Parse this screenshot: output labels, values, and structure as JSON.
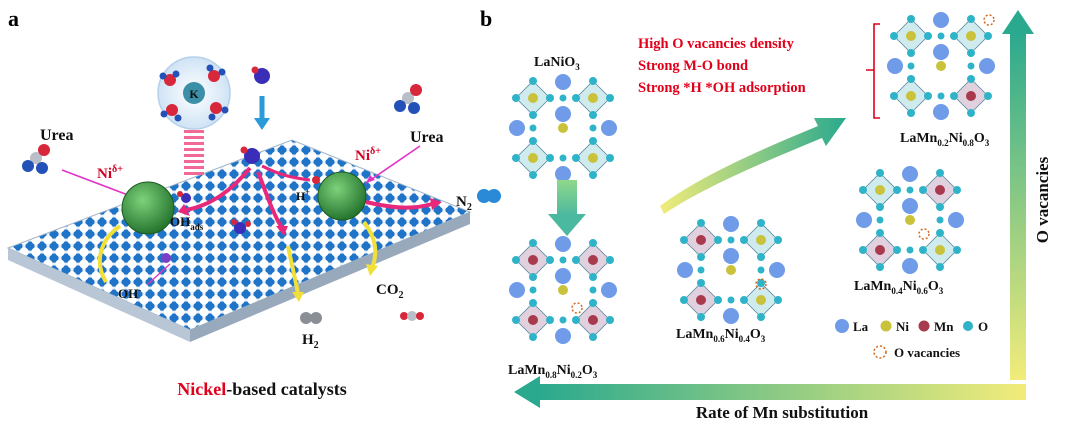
{
  "panel_a": {
    "letter": "a",
    "k_label": "K",
    "urea_left": "Urea",
    "urea_right": "Urea",
    "ni_left": "Ni",
    "ni_right": "Ni",
    "ni_sup": "δ+",
    "h_plus": "H",
    "h_plus_sup": "+",
    "oh_ads": "OH",
    "oh_ads_sub": "ads",
    "oh_minus": "OH",
    "oh_minus_sup": "-",
    "n2": "N",
    "n2_sub": "2",
    "co2": "CO",
    "co2_sub": "2",
    "h2": "H",
    "h2_sub": "2",
    "caption_red": "Nickel",
    "caption_rest": "-based catalysts",
    "colors": {
      "surface_blue": "#1f74c8",
      "catalyst_green": "#2f8f3a",
      "arrow_pink": "#e8287a",
      "arrow_yellow": "#f2e03a"
    }
  },
  "panel_b": {
    "letter": "b",
    "lanio3": {
      "main": "LaNiO",
      "sub3": "3"
    },
    "m08": {
      "a": "LaMn",
      "s1": "0.8",
      "b": "Ni",
      "s2": "0.2",
      "c": "O",
      "s3": "3"
    },
    "m06": {
      "a": "LaMn",
      "s1": "0.6",
      "b": "Ni",
      "s2": "0.4",
      "c": "O",
      "s3": "3"
    },
    "m04": {
      "a": "LaMn",
      "s1": "0.4",
      "b": "Ni",
      "s2": "0.6",
      "c": "O",
      "s3": "3"
    },
    "m02": {
      "a": "LaMn",
      "s1": "0.2",
      "b": "Ni",
      "s2": "0.8",
      "c": "O",
      "s3": "3"
    },
    "red_lines": [
      "High O vacancies density",
      "Strong M-O bond",
      "Strong *H *OH adsorption"
    ],
    "legend": {
      "la": "La",
      "ni": "Ni",
      "mn": "Mn",
      "o": "O",
      "vac": "O vacancies"
    },
    "bottom_label": "Rate of Mn substitution",
    "right_label": "O vacancies",
    "colors": {
      "la": "#6f9be8",
      "ni": "#c9c23a",
      "mn": "#a83a4e",
      "o": "#2fb3c9",
      "vac": "#d2691e",
      "text_red": "#e0001a",
      "arrow_teal": "#2aa98e"
    }
  }
}
